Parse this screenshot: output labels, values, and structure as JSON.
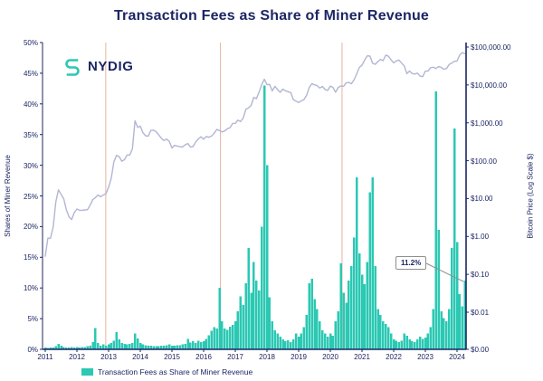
{
  "title": "Transaction Fees as Share of Miner Revenue",
  "logo": {
    "text": "NYDIG"
  },
  "annotation": {
    "label": "11.2%",
    "value": 11.2
  },
  "legend": {
    "label": "Transaction Fees as Share of Miner Revenue"
  },
  "colors": {
    "bars": "#2bc8b3",
    "price_line": "#b2b6d3",
    "halving_line": "#e8b49d",
    "axis": "#1c2663",
    "text": "#1c2663",
    "annotation_border": "#8f8f8f",
    "background": "#ffffff"
  },
  "left_axis": {
    "label": "Shares of Miner Revenue",
    "ticks": [
      {
        "label": "0%",
        "value": 0
      },
      {
        "label": "5%",
        "value": 5
      },
      {
        "label": "10%",
        "value": 10
      },
      {
        "label": "15%",
        "value": 15
      },
      {
        "label": "20%",
        "value": 20
      },
      {
        "label": "25%",
        "value": 25
      },
      {
        "label": "30%",
        "value": 30
      },
      {
        "label": "35%",
        "value": 35
      },
      {
        "label": "40%",
        "value": 40
      },
      {
        "label": "45%",
        "value": 45
      },
      {
        "label": "50%",
        "value": 50
      }
    ],
    "range": [
      0,
      50
    ]
  },
  "right_axis": {
    "label": "Bitcoin Price (Log Scale $)",
    "ticks": [
      {
        "label": "$0.00",
        "value": 0
      },
      {
        "label": "$0.01",
        "value": 0.01
      },
      {
        "label": "$0.10",
        "value": 0.1
      },
      {
        "label": "$1.00",
        "value": 1
      },
      {
        "label": "$10.00",
        "value": 10
      },
      {
        "label": "$100.00",
        "value": 100
      },
      {
        "label": "$1,000.00",
        "value": 1000
      },
      {
        "label": "$10,000.00",
        "value": 10000
      },
      {
        "label": "$100,000.00",
        "value": 100000
      }
    ],
    "scale": "log"
  },
  "x_axis": {
    "ticks": [
      "2011",
      "2012",
      "2013",
      "2014",
      "2015",
      "2016",
      "2017",
      "2018",
      "2019",
      "2020",
      "2021",
      "2022",
      "2023",
      "2024"
    ]
  },
  "chart_data": {
    "type": "combo",
    "title": "Transaction Fees as Share of Miner Revenue",
    "x_frequency": "monthly",
    "x_start": "2011-01",
    "x_end": "2024-04",
    "halving_reference_lines_decimal_years": [
      2012.91,
      2016.53,
      2020.37
    ],
    "legend_position": "bottom-left",
    "grid": false,
    "ylim_left_pct": [
      0,
      50
    ],
    "ylim_right_usd_log": [
      0.001,
      100000
    ],
    "series": [
      {
        "name": "Transaction Fees as Share of Miner Revenue",
        "type": "bar",
        "axis": "left",
        "unit": "%",
        "values": [
          0.3,
          0.2,
          0.3,
          0.3,
          0.5,
          0.9,
          0.6,
          0.4,
          0.3,
          0.3,
          0.4,
          0.3,
          0.4,
          0.3,
          0.4,
          0.4,
          0.5,
          0.6,
          1.2,
          3.5,
          1.0,
          0.6,
          0.8,
          0.6,
          0.8,
          1.0,
          1.4,
          2.8,
          1.6,
          1.0,
          0.9,
          0.8,
          0.9,
          1.0,
          2.6,
          1.8,
          1.0,
          0.8,
          0.7,
          0.6,
          0.6,
          0.5,
          0.5,
          0.5,
          0.6,
          0.6,
          0.7,
          0.8,
          0.6,
          0.6,
          0.7,
          0.7,
          0.8,
          0.9,
          1.7,
          1.1,
          1.3,
          1.0,
          1.4,
          1.2,
          1.3,
          1.7,
          2.3,
          3.0,
          3.6,
          3.4,
          10.0,
          4.6,
          3.4,
          3.2,
          3.7,
          4.0,
          4.6,
          6.2,
          8.6,
          7.2,
          10.8,
          16.5,
          9.2,
          14.2,
          11.2,
          9.6,
          20.0,
          43.0,
          30.0,
          8.5,
          4.6,
          3.1,
          2.6,
          2.1,
          1.6,
          1.3,
          1.5,
          1.2,
          1.6,
          2.6,
          2.1,
          2.6,
          3.6,
          5.6,
          10.8,
          11.5,
          8.2,
          6.6,
          4.6,
          3.1,
          2.6,
          2.1,
          2.6,
          2.2,
          4.6,
          6.2,
          14.0,
          9.2,
          7.6,
          11.2,
          13.6,
          18.2,
          28.0,
          15.6,
          12.2,
          10.6,
          14.2,
          25.6,
          28.0,
          13.6,
          6.6,
          5.6,
          4.6,
          4.1,
          3.6,
          2.6,
          1.6,
          1.4,
          1.2,
          1.4,
          2.6,
          2.2,
          1.6,
          1.3,
          1.2,
          1.6,
          2.1,
          1.7,
          1.9,
          2.6,
          3.6,
          6.6,
          42.0,
          19.5,
          6.2,
          5.1,
          4.6,
          6.6,
          16.5,
          36.0,
          17.5,
          9.0,
          7.0,
          11.2
        ]
      },
      {
        "name": "Bitcoin Price",
        "type": "line",
        "axis": "right",
        "unit": "USD",
        "values": [
          0.3,
          0.9,
          0.9,
          1.8,
          8.2,
          17,
          13,
          9.9,
          5.1,
          3.3,
          2.8,
          4.3,
          5.3,
          4.9,
          4.9,
          5,
          5.1,
          6.7,
          9.4,
          10.6,
          12.4,
          11.2,
          12.5,
          13.4,
          20,
          34,
          93,
          139,
          128,
          97,
          106,
          141,
          141,
          204,
          1130,
          755,
          815,
          550,
          455,
          445,
          630,
          640,
          585,
          480,
          390,
          340,
          375,
          320,
          217,
          254,
          244,
          236,
          230,
          263,
          284,
          230,
          236,
          314,
          377,
          430,
          368,
          437,
          416,
          448,
          531,
          670,
          625,
          575,
          610,
          700,
          745,
          963,
          970,
          1180,
          1080,
          1350,
          2300,
          2480,
          2875,
          4700,
          4340,
          6450,
          10250,
          14100,
          10200,
          10300,
          6930,
          9240,
          7490,
          6400,
          7750,
          7010,
          6625,
          6300,
          4040,
          3740,
          3440,
          3815,
          4100,
          5320,
          8560,
          10800,
          10080,
          9600,
          8290,
          9150,
          7550,
          7190,
          9350,
          8600,
          6440,
          8620,
          9450,
          9140,
          11350,
          11650,
          10780,
          13800,
          19700,
          29000,
          33100,
          45200,
          58800,
          57750,
          37300,
          35000,
          41500,
          47100,
          43800,
          61300,
          57000,
          46200,
          38500,
          43200,
          45500,
          37650,
          31800,
          19900,
          23300,
          20050,
          19400,
          20500,
          17150,
          16550,
          23100,
          23150,
          28500,
          29250,
          27200,
          30450,
          29230,
          25930,
          26960,
          34650,
          37700,
          42250,
          42580,
          61200,
          71300,
          67000
        ]
      }
    ]
  }
}
